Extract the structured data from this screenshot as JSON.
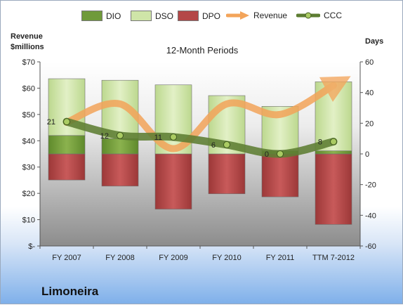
{
  "chart_data": {
    "type": "bar+line",
    "title": "12-Month Periods",
    "company": "Limoneira",
    "y_left_title": [
      "Revenue",
      "$millions"
    ],
    "y_right_title": "Days",
    "categories": [
      "FY 2007",
      "FY 2008",
      "FY 2009",
      "FY 2010",
      "FY 2011",
      "TTM 7-2012"
    ],
    "y_left": {
      "min": 0,
      "max": 70,
      "step": 10,
      "tick_labels": [
        "$-",
        "$10",
        "$20",
        "$30",
        "$40",
        "$50",
        "$60",
        "$70"
      ]
    },
    "y_right": {
      "min": -60,
      "max": 60,
      "step": 20,
      "tick_labels": [
        "-60",
        "-40",
        "-20",
        "0",
        "20",
        "40",
        "60"
      ]
    },
    "series": [
      {
        "name": "DIO",
        "type": "bar",
        "axis": "right",
        "color": "#6f9a3a",
        "values": [
          12,
          10,
          0,
          0,
          2,
          2
        ]
      },
      {
        "name": "DSO",
        "type": "bar",
        "axis": "right",
        "color": "#cfe5a8",
        "values": [
          37,
          38,
          45,
          38,
          29,
          45
        ]
      },
      {
        "name": "DPO",
        "type": "bar",
        "axis": "right",
        "color": "#b44848",
        "values": [
          -17,
          -21,
          -36,
          -26,
          -28,
          -46
        ]
      },
      {
        "name": "Revenue",
        "type": "line",
        "axis": "left",
        "color": "#f3a45a",
        "values": [
          47,
          54,
          37,
          54,
          50,
          61
        ]
      },
      {
        "name": "CCC",
        "type": "line",
        "axis": "right",
        "color": "#5d7d32",
        "values": [
          21,
          12,
          11,
          6,
          0,
          8
        ],
        "data_labels": [
          "21",
          "12",
          "11",
          "6",
          "0",
          "8"
        ]
      }
    ],
    "grid": false,
    "legend_position": "top"
  }
}
